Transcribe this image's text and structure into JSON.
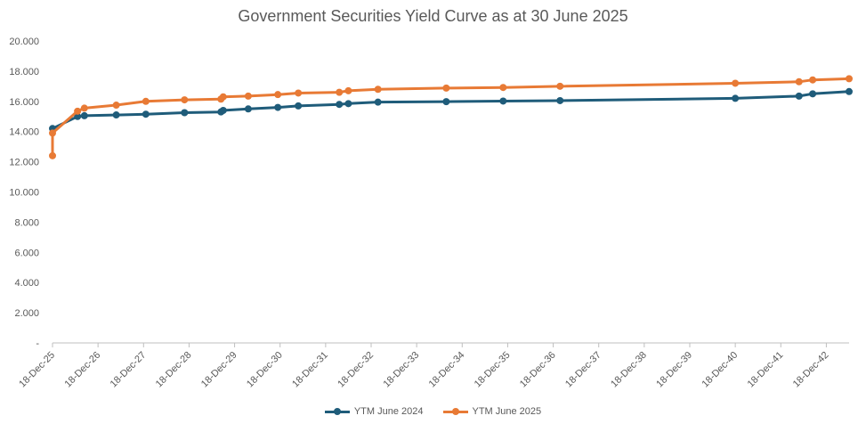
{
  "chart_data": {
    "type": "line",
    "title": "Government Securities Yield Curve as at 30 June 2025",
    "xlabel": "",
    "ylabel": "",
    "x_tick_labels": [
      "18-Dec-25",
      "18-Dec-26",
      "18-Dec-27",
      "18-Dec-28",
      "18-Dec-29",
      "18-Dec-30",
      "18-Dec-31",
      "18-Dec-32",
      "18-Dec-33",
      "18-Dec-34",
      "18-Dec-35",
      "18-Dec-36",
      "18-Dec-37",
      "18-Dec-38",
      "18-Dec-39",
      "18-Dec-40",
      "18-Dec-41",
      "18-Dec-42"
    ],
    "y_tick_labels": [
      "-",
      "2.000",
      "4.000",
      "6.000",
      "8.000",
      "10.000",
      "12.000",
      "14.000",
      "16.000",
      "18.000",
      "20.000"
    ],
    "xlim": [
      0,
      17.5
    ],
    "ylim": [
      0,
      20
    ],
    "grid": false,
    "legend_position": "bottom",
    "series": [
      {
        "name": "YTM June 2024",
        "color": "#1f5c7a",
        "x": [
          0.0,
          0.55,
          0.7,
          1.4,
          2.05,
          2.9,
          3.7,
          3.75,
          4.3,
          4.95,
          5.4,
          6.3,
          6.5,
          7.15,
          8.65,
          9.9,
          11.15,
          15.0,
          16.4,
          16.7,
          17.5
        ],
        "y": [
          14.2,
          15.0,
          15.05,
          15.1,
          15.15,
          15.25,
          15.3,
          15.4,
          15.5,
          15.6,
          15.7,
          15.8,
          15.85,
          15.95,
          15.98,
          16.02,
          16.05,
          16.2,
          16.35,
          16.5,
          16.65
        ]
      },
      {
        "name": "YTM June 2025",
        "color": "#e87a35",
        "x": [
          0.0,
          0.0,
          0.55,
          0.7,
          1.4,
          2.05,
          2.9,
          3.7,
          3.75,
          4.3,
          4.95,
          5.4,
          6.3,
          6.5,
          7.15,
          8.65,
          9.9,
          11.15,
          15.0,
          16.4,
          16.7,
          17.5
        ],
        "y": [
          12.4,
          13.9,
          15.35,
          15.55,
          15.75,
          16.0,
          16.1,
          16.15,
          16.3,
          16.35,
          16.45,
          16.55,
          16.6,
          16.7,
          16.8,
          16.88,
          16.92,
          17.0,
          17.2,
          17.3,
          17.42,
          17.5
        ]
      }
    ]
  }
}
